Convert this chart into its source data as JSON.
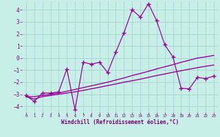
{
  "background_color": "#c8eee8",
  "grid_color": "#9ecfca",
  "line_color": "#990099",
  "xlabel": "Windchill (Refroidissement éolien,°C)",
  "xlabel_color": "#770077",
  "tick_color": "#770077",
  "xlim": [
    -0.5,
    23.5
  ],
  "ylim": [
    -4.5,
    4.7
  ],
  "yticks": [
    -4,
    -3,
    -2,
    -1,
    0,
    1,
    2,
    3,
    4
  ],
  "xticks": [
    0,
    1,
    2,
    3,
    4,
    5,
    6,
    7,
    8,
    9,
    10,
    11,
    12,
    13,
    14,
    15,
    16,
    17,
    18,
    19,
    20,
    21,
    22,
    23
  ],
  "series": [
    {
      "x": [
        0,
        1,
        2,
        3,
        4,
        5,
        6,
        7,
        8,
        9,
        10,
        11,
        12,
        13,
        14,
        15,
        16,
        17,
        18,
        19,
        20,
        21,
        22,
        23
      ],
      "y": [
        -3.1,
        -3.6,
        -2.9,
        -2.9,
        -2.8,
        -0.9,
        -4.3,
        -0.35,
        -0.5,
        -0.35,
        -1.2,
        0.5,
        2.1,
        4.0,
        3.4,
        4.5,
        3.1,
        1.1,
        0.1,
        -2.5,
        -2.55,
        -1.6,
        -1.7,
        -1.5
      ],
      "marker": "+",
      "markersize": 4,
      "linewidth": 0.9,
      "zorder": 3
    },
    {
      "x": [
        0,
        1,
        2,
        3,
        4,
        5,
        6,
        7,
        8,
        9,
        10,
        11,
        12,
        13,
        14,
        15,
        16,
        17,
        18,
        19,
        20,
        21,
        22,
        23
      ],
      "y": [
        -3.2,
        -3.2,
        -3.1,
        -3.0,
        -2.9,
        -2.75,
        -2.6,
        -2.45,
        -2.3,
        -2.15,
        -2.0,
        -1.82,
        -1.65,
        -1.45,
        -1.28,
        -1.1,
        -0.9,
        -0.72,
        -0.55,
        -0.35,
        -0.18,
        0.0,
        0.1,
        0.22
      ],
      "marker": "None",
      "markersize": 0,
      "linewidth": 1.0,
      "zorder": 2
    },
    {
      "x": [
        0,
        1,
        2,
        3,
        4,
        5,
        6,
        7,
        8,
        9,
        10,
        11,
        12,
        13,
        14,
        15,
        16,
        17,
        18,
        19,
        20,
        21,
        22,
        23
      ],
      "y": [
        -3.2,
        -3.4,
        -3.2,
        -3.1,
        -3.0,
        -2.9,
        -2.8,
        -2.68,
        -2.55,
        -2.42,
        -2.28,
        -2.15,
        -2.0,
        -1.88,
        -1.75,
        -1.6,
        -1.45,
        -1.32,
        -1.18,
        -1.05,
        -0.92,
        -0.8,
        -0.68,
        -0.58
      ],
      "marker": "None",
      "markersize": 0,
      "linewidth": 1.0,
      "zorder": 2
    }
  ]
}
